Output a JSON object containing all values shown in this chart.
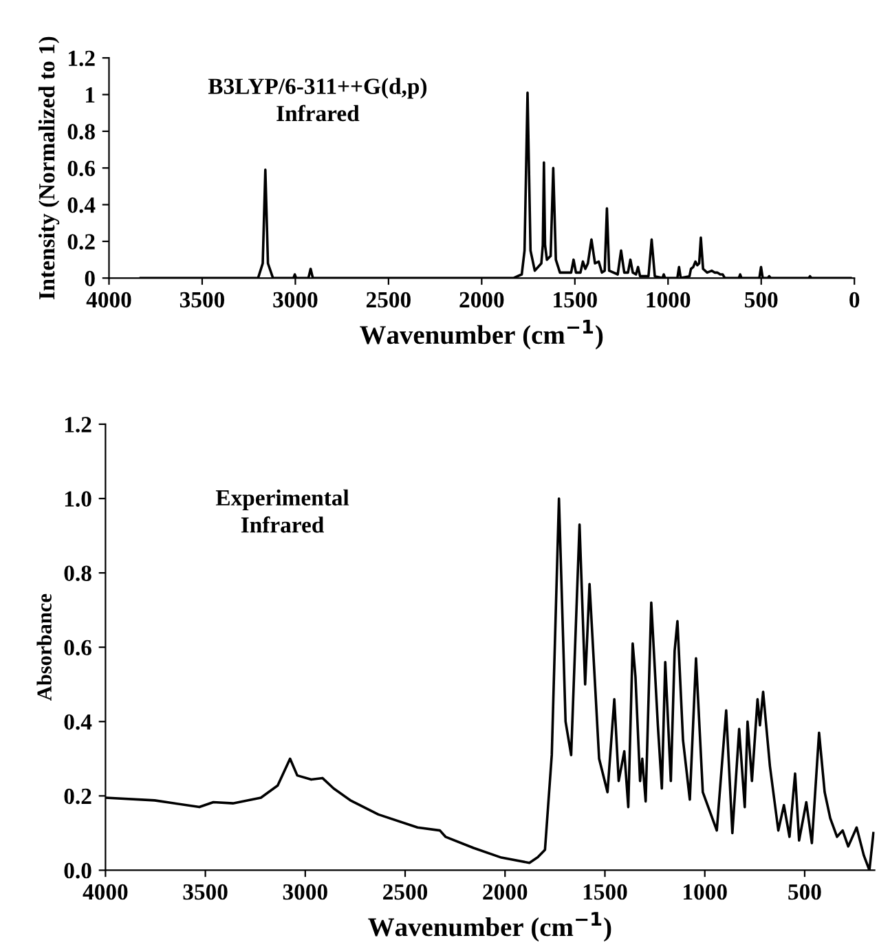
{
  "chart_data": [
    {
      "type": "line",
      "xlabel": "Wavenumber (cm$^{−1}$)",
      "ylabel": "Intensity (Normalized to 1)",
      "annotations": [
        "B3LYP/6-311++G(d,p)\nInfrared"
      ],
      "series": [
        {
          "color": "#000000",
          "x": [
            3830,
            3200,
            3175,
            3161,
            3147,
            3120,
            3010,
            3003,
            2996,
            2930,
            2918,
            2906,
            1830,
            1785,
            1770,
            1754,
            1738,
            1715,
            1680,
            1672,
            1666,
            1660,
            1650,
            1630,
            1616,
            1602,
            1580,
            1520,
            1507,
            1494,
            1470,
            1457,
            1444,
            1430,
            1411,
            1392,
            1372,
            1355,
            1340,
            1328,
            1316,
            1270,
            1252,
            1235,
            1215,
            1202,
            1189,
            1172,
            1161,
            1150,
            1105,
            1088,
            1071,
            1030,
            1023,
            1016,
            950,
            941,
            932,
            885,
            877,
            865,
            853,
            843,
            833,
            824,
            812,
            790,
            765,
            750,
            736,
            720,
            707,
            695,
            620,
            613,
            606,
            510,
            501,
            492,
            465,
            457,
            449,
            245,
            238,
            231,
            20
          ],
          "values": [
            0,
            0,
            0.08,
            0.59,
            0.08,
            0,
            0,
            0.02,
            0,
            0,
            0.05,
            0,
            0,
            0.02,
            0.15,
            1.01,
            0.15,
            0.04,
            0.08,
            0.18,
            0.63,
            0.18,
            0.1,
            0.12,
            0.6,
            0.1,
            0.03,
            0.03,
            0.1,
            0.03,
            0.03,
            0.09,
            0.05,
            0.08,
            0.21,
            0.08,
            0.09,
            0.03,
            0.04,
            0.38,
            0.04,
            0.02,
            0.15,
            0.03,
            0.03,
            0.1,
            0.03,
            0.02,
            0.06,
            0.01,
            0.01,
            0.21,
            0.01,
            0,
            0.02,
            0,
            0,
            0.06,
            0,
            0.01,
            0.05,
            0.06,
            0.09,
            0.07,
            0.08,
            0.22,
            0.05,
            0.03,
            0.04,
            0.03,
            0.03,
            0.02,
            0.02,
            0,
            0,
            0.02,
            0,
            0,
            0.06,
            0,
            0,
            0.01,
            0,
            0,
            0.01,
            0,
            0
          ]
        }
      ],
      "xlim": [
        4000,
        0
      ],
      "xticks": [
        4000,
        3500,
        3000,
        2500,
        2000,
        1500,
        1000,
        500,
        0
      ],
      "ylim": [
        0,
        1.2
      ],
      "yticks": [
        0,
        0.2,
        0.4,
        0.6,
        0.8,
        1,
        1.2
      ],
      "grid": false,
      "legend": false,
      "line_style": "solid",
      "marker": "none"
    },
    {
      "type": "line",
      "xlabel": "Wavenumber (cm$^{−1}$)",
      "ylabel": "Absorbance",
      "annotations": [
        "Experimental\nInfrared"
      ],
      "series": [
        {
          "color": "#000000",
          "x": [
            4000,
            3754,
            3530,
            3460,
            3362,
            3222,
            3138,
            3076,
            3040,
            2970,
            2914,
            2858,
            2774,
            2634,
            2438,
            2326,
            2298,
            2158,
            2018,
            1878,
            1836,
            1800,
            1766,
            1730,
            1697,
            1669,
            1627,
            1599,
            1577,
            1529,
            1487,
            1453,
            1431,
            1403,
            1383,
            1361,
            1347,
            1324,
            1313,
            1296,
            1268,
            1235,
            1215,
            1198,
            1170,
            1151,
            1137,
            1109,
            1075,
            1044,
            1010,
            940,
            893,
            862,
            828,
            800,
            786,
            764,
            736,
            724,
            708,
            674,
            632,
            604,
            576,
            548,
            528,
            492,
            464,
            428,
            400,
            372,
            338,
            310,
            282,
            240,
            204,
            176,
            156
          ],
          "values": [
            0.195,
            0.188,
            0.17,
            0.183,
            0.18,
            0.195,
            0.228,
            0.3,
            0.255,
            0.244,
            0.248,
            0.22,
            0.188,
            0.15,
            0.115,
            0.107,
            0.09,
            0.06,
            0.034,
            0.02,
            0.035,
            0.055,
            0.31,
            1.0,
            0.4,
            0.31,
            0.93,
            0.5,
            0.77,
            0.3,
            0.21,
            0.46,
            0.24,
            0.32,
            0.17,
            0.61,
            0.52,
            0.24,
            0.3,
            0.185,
            0.72,
            0.39,
            0.22,
            0.56,
            0.24,
            0.59,
            0.67,
            0.35,
            0.19,
            0.57,
            0.21,
            0.107,
            0.43,
            0.1,
            0.38,
            0.17,
            0.4,
            0.24,
            0.46,
            0.39,
            0.48,
            0.28,
            0.107,
            0.175,
            0.09,
            0.26,
            0.08,
            0.183,
            0.073,
            0.37,
            0.21,
            0.14,
            0.09,
            0.107,
            0.064,
            0.115,
            0.04,
            0.0,
            0.1
          ]
        }
      ],
      "xlim": [
        4000,
        150
      ],
      "xticks": [
        4000,
        3500,
        3000,
        2500,
        2000,
        1500,
        1000,
        500
      ],
      "ylim": [
        0,
        1.2
      ],
      "yticks": [
        {
          "value": 0,
          "label": "0.0"
        },
        0.2,
        0.4,
        0.6,
        0.8,
        {
          "value": 1,
          "label": "1.0"
        },
        1.2
      ],
      "grid": false,
      "legend": false,
      "line_style": "solid",
      "marker": "none"
    }
  ]
}
